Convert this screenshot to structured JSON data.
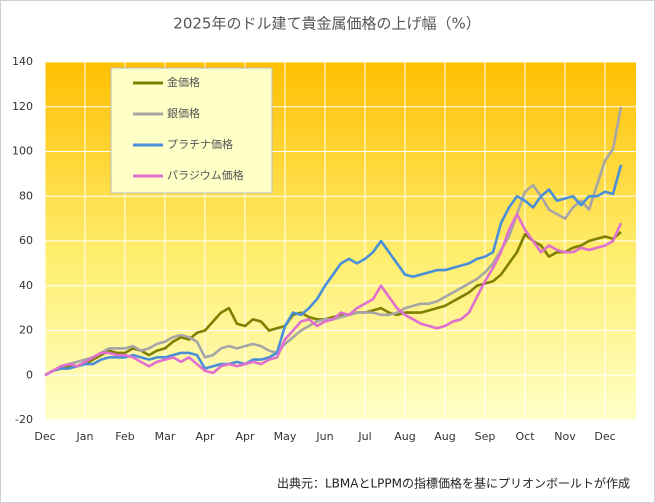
{
  "chart_data": {
    "type": "line",
    "title": "2025年のドル建て貴金属価格の上げ幅（%）",
    "source": "出典元：LBMAとLPPMの指標価格を基にプリオンボールトが作成",
    "categories": [
      "Dec",
      null,
      null,
      null,
      null,
      "Jan",
      null,
      null,
      null,
      null,
      "Feb",
      null,
      null,
      null,
      null,
      "Mar",
      null,
      null,
      null,
      null,
      "Apr",
      null,
      null,
      null,
      null,
      "Apr",
      null,
      null,
      null,
      null,
      "May",
      null,
      null,
      null,
      null,
      "Jun",
      null,
      null,
      null,
      null,
      "Jul",
      null,
      null,
      null,
      null,
      "Aug",
      null,
      null,
      null,
      null,
      "Aug",
      null,
      null,
      null,
      null,
      "Sep",
      null,
      null,
      null,
      null,
      "Oct",
      null,
      null,
      null,
      null,
      "Nov",
      null,
      null,
      null,
      null,
      "Dec",
      null,
      null
    ],
    "series": [
      {
        "name": "金価格",
        "color": "#7f7f00",
        "values": [
          0,
          2,
          3,
          4,
          4,
          5,
          7,
          9,
          11,
          10,
          10,
          12,
          11,
          9,
          11,
          12,
          15,
          17,
          16,
          19,
          20,
          24,
          28,
          30,
          23,
          22,
          25,
          24,
          20,
          21,
          22,
          27,
          28,
          26,
          25,
          25,
          26,
          27,
          27,
          28,
          28,
          29,
          30,
          28,
          27,
          28,
          28,
          28,
          29,
          30,
          31,
          33,
          35,
          37,
          40,
          41,
          42,
          45,
          50,
          55,
          63,
          60,
          58,
          53,
          55,
          55,
          57,
          58,
          60,
          61,
          62,
          61,
          64
        ]
      },
      {
        "name": "銀価格",
        "color": "#a6a6a6",
        "values": [
          0,
          2,
          4,
          5,
          6,
          7,
          8,
          10,
          12,
          12,
          12,
          13,
          11,
          12,
          14,
          15,
          17,
          18,
          17,
          15,
          8,
          9,
          12,
          13,
          12,
          13,
          14,
          13,
          11,
          10,
          14,
          17,
          20,
          22,
          24,
          25,
          25,
          26,
          27,
          28,
          28,
          28,
          27,
          27,
          28,
          30,
          31,
          32,
          32,
          33,
          35,
          37,
          39,
          41,
          43,
          46,
          50,
          56,
          62,
          72,
          82,
          85,
          80,
          74,
          72,
          70,
          75,
          78,
          74,
          85,
          96,
          101,
          120
        ]
      },
      {
        "name": "プラチナ価格",
        "color": "#4a8fd8",
        "values": [
          0,
          2,
          3,
          3,
          4,
          5,
          5,
          7,
          8,
          8,
          8,
          9,
          8,
          7,
          8,
          8,
          9,
          10,
          10,
          9,
          3,
          4,
          5,
          5,
          6,
          5,
          7,
          7,
          8,
          10,
          22,
          28,
          27,
          30,
          34,
          40,
          45,
          50,
          52,
          50,
          52,
          55,
          60,
          55,
          50,
          45,
          44,
          45,
          46,
          47,
          47,
          48,
          49,
          50,
          52,
          53,
          55,
          68,
          75,
          80,
          78,
          75,
          80,
          83,
          78,
          79,
          80,
          76,
          80,
          80,
          82,
          81,
          94
        ]
      },
      {
        "name": "パラジウム価格",
        "color": "#e070d0",
        "values": [
          0,
          2,
          4,
          5,
          4,
          6,
          8,
          10,
          10,
          9,
          9,
          8,
          6,
          4,
          6,
          7,
          8,
          6,
          8,
          5,
          2,
          1,
          4,
          5,
          4,
          5,
          6,
          5,
          7,
          8,
          16,
          20,
          24,
          25,
          22,
          24,
          25,
          28,
          27,
          30,
          32,
          34,
          40,
          35,
          30,
          27,
          25,
          23,
          22,
          21,
          22,
          24,
          25,
          28,
          35,
          42,
          48,
          55,
          65,
          72,
          65,
          60,
          55,
          58,
          56,
          55,
          55,
          57,
          56,
          57,
          58,
          60,
          68
        ]
      }
    ],
    "ylim": [
      -20,
      140
    ],
    "yticks": [
      -20,
      0,
      20,
      40,
      60,
      80,
      100,
      120,
      140
    ],
    "grid": true,
    "legend": "upper-left"
  }
}
